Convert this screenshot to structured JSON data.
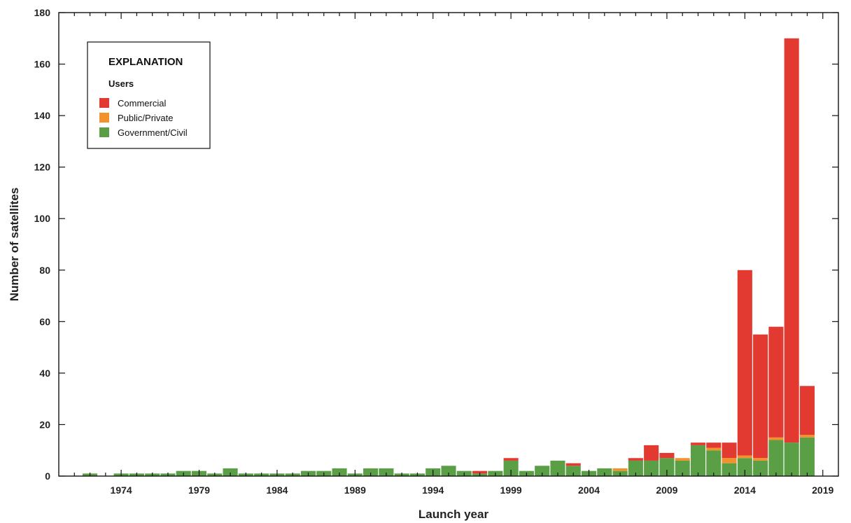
{
  "chart_data": {
    "type": "bar",
    "stacked": true,
    "xlabel": "Launch year",
    "ylabel": "Number of satellites",
    "ylim": [
      0,
      180
    ],
    "yticks": [
      0,
      20,
      40,
      60,
      80,
      100,
      120,
      140,
      160,
      180
    ],
    "xlim": [
      1970,
      2020
    ],
    "xticks": [
      1974,
      1979,
      1984,
      1989,
      1994,
      1999,
      2004,
      2009,
      2014,
      2019
    ],
    "grid": false,
    "legend": {
      "title": "EXPLANATION",
      "subtitle": "Users",
      "placement": "top-left"
    },
    "categories": [
      1972,
      1974,
      1975,
      1976,
      1977,
      1978,
      1979,
      1980,
      1981,
      1982,
      1983,
      1984,
      1985,
      1986,
      1987,
      1988,
      1989,
      1990,
      1991,
      1992,
      1993,
      1994,
      1995,
      1996,
      1997,
      1998,
      1999,
      2000,
      2001,
      2002,
      2003,
      2004,
      2005,
      2006,
      2007,
      2008,
      2009,
      2010,
      2011,
      2012,
      2013,
      2014,
      2015,
      2016,
      2017,
      2018
    ],
    "series": [
      {
        "name": "Government/Civil",
        "color": "#5a9e45",
        "values": [
          1,
          1,
          1,
          1,
          1,
          2,
          2,
          1,
          3,
          1,
          1,
          1,
          1,
          2,
          2,
          3,
          1,
          3,
          3,
          1,
          1,
          3,
          4,
          2,
          1,
          2,
          6,
          2,
          4,
          6,
          4,
          2,
          3,
          2,
          6,
          6,
          7,
          6,
          12,
          10,
          5,
          7,
          6,
          14,
          13,
          15
        ]
      },
      {
        "name": "Public/Private",
        "color": "#f2922d",
        "values": [
          0,
          0,
          0,
          0,
          0,
          0,
          0,
          0,
          0,
          0,
          0,
          0,
          0,
          0,
          0,
          0,
          0,
          0,
          0,
          0,
          0,
          0,
          0,
          0,
          0,
          0,
          0,
          0,
          0,
          0,
          0,
          0,
          0,
          1,
          0,
          0,
          0,
          1,
          0,
          1,
          2,
          1,
          1,
          1,
          0,
          1
        ]
      },
      {
        "name": "Commercial",
        "color": "#e23a30",
        "values": [
          0,
          0,
          0,
          0,
          0,
          0,
          0,
          0,
          0,
          0,
          0,
          0,
          0,
          0,
          0,
          0,
          0,
          0,
          0,
          0,
          0,
          0,
          0,
          0,
          1,
          0,
          1,
          0,
          0,
          0,
          1,
          0,
          0,
          0,
          1,
          6,
          2,
          0,
          1,
          2,
          6,
          72,
          48,
          43,
          157,
          19
        ]
      }
    ],
    "legend_order": [
      "Commercial",
      "Public/Private",
      "Government/Civil"
    ]
  }
}
